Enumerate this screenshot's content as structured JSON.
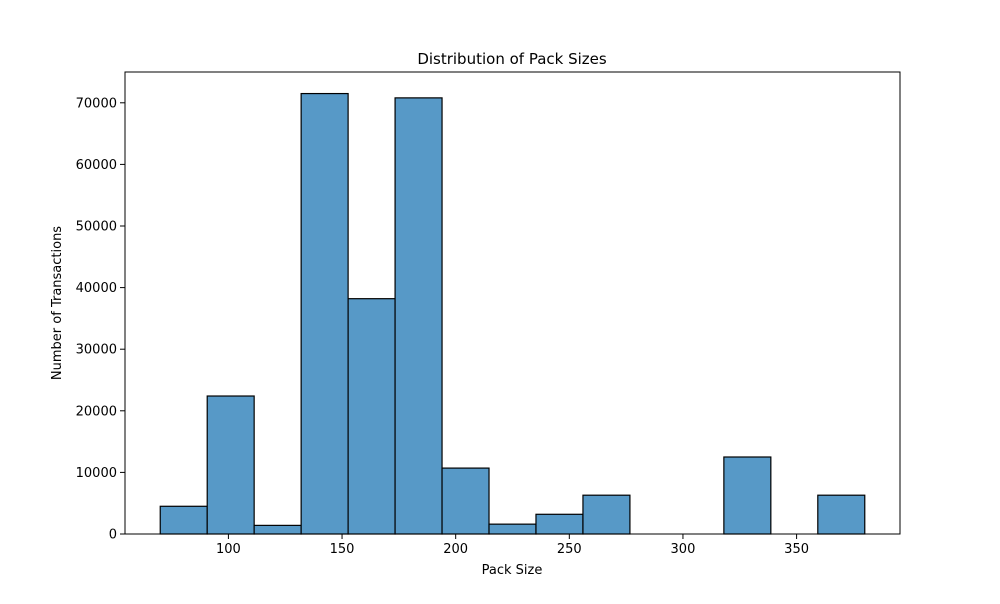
{
  "chart_data": {
    "type": "bar",
    "title": "Distribution of Pack Sizes",
    "xlabel": "Pack Size",
    "ylabel": "Number of Transactions",
    "xlim": [
      54.5,
      395.5
    ],
    "ylim": [
      0,
      75000
    ],
    "xticks": [
      100,
      150,
      200,
      250,
      300,
      350
    ],
    "yticks": [
      0,
      10000,
      20000,
      30000,
      40000,
      50000,
      60000,
      70000
    ],
    "bins": [
      {
        "x0": 70.0,
        "x1": 90.67,
        "count": 4500
      },
      {
        "x0": 90.67,
        "x1": 111.33,
        "count": 22400
      },
      {
        "x0": 111.33,
        "x1": 132.0,
        "count": 1400
      },
      {
        "x0": 132.0,
        "x1": 152.67,
        "count": 71500
      },
      {
        "x0": 152.67,
        "x1": 173.33,
        "count": 38200
      },
      {
        "x0": 173.33,
        "x1": 194.0,
        "count": 70800
      },
      {
        "x0": 194.0,
        "x1": 214.67,
        "count": 10700
      },
      {
        "x0": 214.67,
        "x1": 235.33,
        "count": 1600
      },
      {
        "x0": 235.33,
        "x1": 256.0,
        "count": 3200
      },
      {
        "x0": 256.0,
        "x1": 276.67,
        "count": 6300
      },
      {
        "x0": 276.67,
        "x1": 297.33,
        "count": 0
      },
      {
        "x0": 297.33,
        "x1": 318.0,
        "count": 0
      },
      {
        "x0": 318.0,
        "x1": 338.67,
        "count": 12500
      },
      {
        "x0": 338.67,
        "x1": 359.33,
        "count": 0
      },
      {
        "x0": 359.33,
        "x1": 380.0,
        "count": 6300
      }
    ],
    "grid": false,
    "colors": {
      "bar_fill": "#5799c7",
      "bar_edge": "#000000"
    }
  }
}
